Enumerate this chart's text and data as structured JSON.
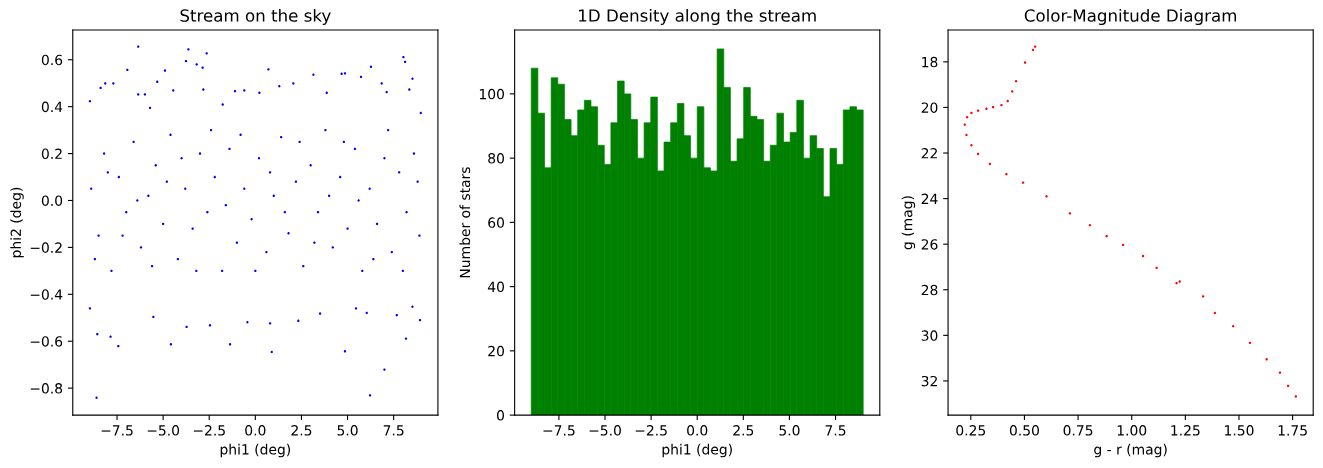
{
  "chart_data": [
    {
      "type": "scatter",
      "title": "Stream on the sky",
      "xlabel": "phi1 (deg)",
      "ylabel": "phi2 (deg)",
      "marker": "circle",
      "grid": false,
      "xlim": [
        -9.9,
        9.9
      ],
      "ylim": [
        -0.915,
        0.727
      ],
      "xticks": [
        {
          "value": -7.5,
          "label": "−7.5"
        },
        {
          "value": -5.0,
          "label": "−5.0"
        },
        {
          "value": -2.5,
          "label": "−2.5"
        },
        {
          "value": 0,
          "label": "0.0"
        },
        2.5,
        {
          "value": 5,
          "label": "5.0"
        },
        7.5
      ],
      "yticks": [
        {
          "value": -0.8,
          "label": "−0.8"
        },
        {
          "value": -0.6,
          "label": "−0.6"
        },
        {
          "value": -0.4,
          "label": "−0.4"
        },
        {
          "value": -0.2,
          "label": "−0.2"
        },
        {
          "value": 0,
          "label": "0.0"
        },
        0.2,
        0.4,
        0.6
      ],
      "series": [
        {
          "color": "#0000ff",
          "x": [
            -8.61,
            -6.35,
            -3.63,
            -3.76,
            -2.64,
            -2.86,
            -3.18,
            -4.9,
            -6.94,
            0.71,
            6.27,
            8.03,
            8.12,
            8.52,
            4.86,
            4.68,
            3.15,
            5.73,
            6.22,
            7.0,
            4.86,
            0.89,
            -1.37,
            -4.58,
            -7.43,
            -8.57,
            -7.85,
            8.17,
            8.93,
            8.97,
            -8.97,
            -8.97,
            -8.39,
            -8.14,
            -7.7,
            -5.53,
            -3.73,
            -2.46,
            -0.43,
            0.8,
            2.33,
            3.51,
            5.46,
            6.04,
            7.67,
            8.52,
            -0.6,
            -1.1,
            2.06,
            1.3,
            3.87,
            6.85,
            7.12,
            8.35,
            -4.45,
            -5.32,
            -5.71,
            -6.35,
            -5.99,
            -2.82,
            0.22,
            -1.77,
            -8.9,
            -8.5,
            -8.2,
            -7.8,
            -7.4,
            -7.0,
            -6.6,
            -6.2,
            -5.8,
            -5.4,
            -5.0,
            -4.6,
            -4.2,
            -3.8,
            -3.4,
            -3.0,
            -2.6,
            -2.2,
            -1.8,
            -1.4,
            -1.0,
            -0.6,
            -0.2,
            0.2,
            0.6,
            1.0,
            1.4,
            1.8,
            2.2,
            2.6,
            3.0,
            3.4,
            3.8,
            4.2,
            4.6,
            5.0,
            5.4,
            5.8,
            6.2,
            6.6,
            7.0,
            7.4,
            7.8,
            8.2,
            8.6,
            8.9,
            -8.7,
            -8.0,
            -7.2,
            -6.4,
            -5.6,
            -4.8,
            -4.0,
            -3.2,
            -2.4,
            -1.6,
            -0.8,
            0.0,
            0.8,
            1.6,
            2.4,
            3.2,
            4.0,
            4.8,
            5.6,
            6.4,
            7.2,
            8.0,
            8.8
          ],
          "values": [
            -0.841,
            0.656,
            0.644,
            0.594,
            0.627,
            0.566,
            0.58,
            0.554,
            0.557,
            0.559,
            0.57,
            0.611,
            0.591,
            0.519,
            0.542,
            0.54,
            0.536,
            0.527,
            -0.831,
            -0.721,
            -0.643,
            -0.646,
            -0.613,
            -0.613,
            -0.621,
            -0.57,
            -0.581,
            -0.589,
            -0.51,
            0.373,
            -0.46,
            0.423,
            0.48,
            0.499,
            0.499,
            -0.496,
            -0.539,
            -0.532,
            -0.519,
            -0.524,
            -0.513,
            -0.482,
            -0.46,
            -0.479,
            -0.489,
            -0.453,
            0.469,
            0.466,
            0.499,
            0.487,
            0.459,
            0.499,
            0.462,
            0.473,
            0.469,
            0.506,
            0.395,
            0.452,
            0.452,
            0.473,
            0.459,
            0.409,
            0.05,
            -0.15,
            0.2,
            -0.3,
            0.1,
            -0.05,
            0.25,
            -0.2,
            0.02,
            0.15,
            -0.1,
            0.28,
            -0.25,
            0.05,
            -0.12,
            0.2,
            -0.05,
            0.1,
            -0.3,
            0.22,
            -0.18,
            0.05,
            -0.08,
            0.18,
            -0.22,
            0.02,
            0.27,
            -0.14,
            0.08,
            -0.28,
            0.15,
            -0.05,
            0.3,
            -0.2,
            0.1,
            -0.12,
            0.22,
            -0.3,
            0.05,
            -0.1,
            0.18,
            -0.22,
            0.12,
            -0.05,
            0.2,
            -0.15,
            -0.25,
            0.12,
            -0.15,
            0.0,
            -0.28,
            0.08,
            0.18,
            -0.3,
            0.3,
            -0.02,
            0.28,
            -0.3,
            0.12,
            -0.05,
            0.25,
            -0.18,
            0.02,
            0.25,
            0.0,
            -0.25,
            0.3,
            -0.3,
            0.08
          ]
        }
      ]
    },
    {
      "type": "histogram",
      "title": "1D Density along the stream",
      "xlabel": "phi1 (deg)",
      "ylabel": "Number of stars",
      "grid": false,
      "color": "#008000",
      "xlim": [
        -9.9,
        9.9
      ],
      "ylim": [
        0,
        119.9
      ],
      "xticks": [
        {
          "value": -7.5,
          "label": "−7.5"
        },
        {
          "value": -5.0,
          "label": "−5.0"
        },
        {
          "value": -2.5,
          "label": "−2.5"
        },
        {
          "value": 0,
          "label": "0.0"
        },
        2.5,
        {
          "value": 5,
          "label": "5.0"
        },
        7.5
      ],
      "yticks": [
        0,
        20,
        40,
        60,
        80,
        100
      ],
      "bins": [
        -9.0,
        -8.64,
        -8.28,
        -7.92,
        -7.56,
        -7.2,
        -6.84,
        -6.48,
        -6.12,
        -5.76,
        -5.4,
        -5.04,
        -4.68,
        -4.32,
        -3.96,
        -3.6,
        -3.24,
        -2.88,
        -2.52,
        -2.16,
        -1.8,
        -1.44,
        -1.08,
        -0.72,
        -0.36,
        0.0,
        0.36,
        0.72,
        1.08,
        1.44,
        1.8,
        2.16,
        2.52,
        2.88,
        3.24,
        3.6,
        3.96,
        4.32,
        4.68,
        5.04,
        5.4,
        5.76,
        6.12,
        6.48,
        6.84,
        7.2,
        7.56,
        7.92,
        8.28,
        8.64,
        9.0
      ],
      "values": [
        108,
        94,
        77,
        105,
        103,
        92,
        87,
        95,
        98,
        96,
        84,
        78,
        91,
        104,
        100,
        92,
        80,
        91,
        99,
        76,
        85,
        91,
        97,
        87,
        80,
        96,
        77,
        76,
        114,
        102,
        79,
        86,
        102,
        93,
        92,
        79,
        84,
        94,
        85,
        88,
        98,
        80,
        87,
        83,
        68,
        83,
        78,
        95,
        96,
        95
      ]
    },
    {
      "type": "scatter",
      "title": "Color-Magnitude Diagram",
      "xlabel": "g - r (mag)",
      "ylabel": "g (mag)",
      "marker": "circle",
      "grid": false,
      "xlim": [
        0.144,
        1.846
      ],
      "ylim": [
        33.5,
        16.6
      ],
      "xticks": [
        0.25,
        {
          "value": 0.5,
          "label": "0.50"
        },
        0.75,
        {
          "value": 1.0,
          "label": "1.00"
        },
        1.25,
        {
          "value": 1.5,
          "label": "1.50"
        },
        1.75
      ],
      "yticks": [
        18,
        20,
        22,
        24,
        26,
        28,
        30,
        32
      ],
      "series": [
        {
          "color": "#ff0000",
          "x": [
            0.55,
            0.54,
            0.503,
            0.461,
            0.443,
            0.422,
            0.393,
            0.354,
            0.323,
            0.284,
            0.253,
            0.233,
            0.222,
            0.23,
            0.253,
            0.284,
            0.339,
            0.416,
            0.494,
            0.603,
            0.712,
            0.805,
            0.883,
            0.96,
            1.053,
            1.116,
            1.209,
            1.224,
            1.333,
            1.388,
            1.473,
            1.551,
            1.629,
            1.691,
            1.729,
            1.765
          ],
          "values": [
            17.33,
            17.48,
            18.03,
            18.85,
            19.3,
            19.72,
            19.9,
            19.99,
            20.06,
            20.14,
            20.24,
            20.43,
            20.76,
            21.21,
            21.66,
            22.04,
            22.48,
            22.93,
            23.3,
            23.9,
            24.65,
            25.17,
            25.65,
            26.03,
            26.52,
            27.04,
            27.71,
            27.64,
            28.29,
            29.02,
            29.6,
            30.33,
            31.05,
            31.64,
            32.22,
            32.68
          ]
        }
      ]
    }
  ]
}
